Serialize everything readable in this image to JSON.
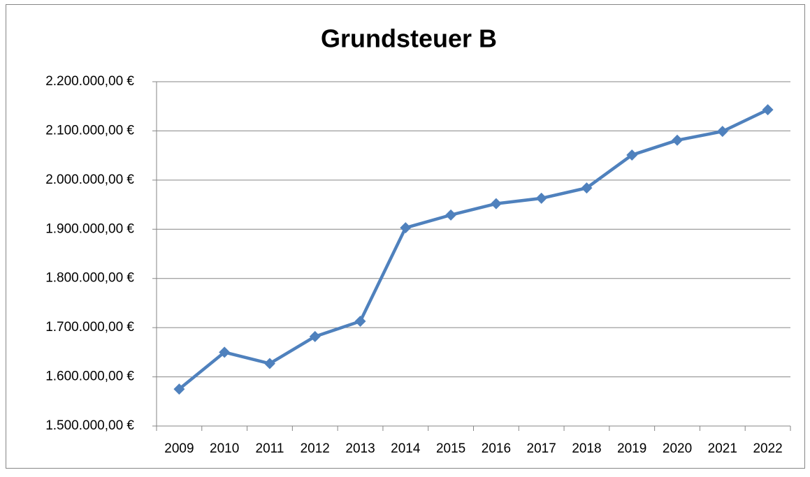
{
  "chart_data": {
    "type": "line",
    "title": "Grundsteuer B",
    "categories": [
      "2009",
      "2010",
      "2011",
      "2012",
      "2013",
      "2014",
      "2015",
      "2016",
      "2017",
      "2018",
      "2019",
      "2020",
      "2021",
      "2022"
    ],
    "series": [
      {
        "name": "Grundsteuer B",
        "color": "#4f81bd",
        "values": [
          1575000,
          1650000,
          1627000,
          1682000,
          1713000,
          1903000,
          1929000,
          1952000,
          1963000,
          1984000,
          2051000,
          2081000,
          2099000,
          2143000
        ]
      }
    ],
    "ylim": [
      1500000,
      2200000
    ],
    "yticks": [
      {
        "value": 1500000,
        "label": "1.500.000,00 €"
      },
      {
        "value": 1600000,
        "label": "1.600.000,00 €"
      },
      {
        "value": 1700000,
        "label": "1.700.000,00 €"
      },
      {
        "value": 1800000,
        "label": "1.800.000,00 €"
      },
      {
        "value": 1900000,
        "label": "1.900.000,00 €"
      },
      {
        "value": 2000000,
        "label": "2.000.000,00 €"
      },
      {
        "value": 2100000,
        "label": "2.100.000,00 €"
      },
      {
        "value": 2200000,
        "label": "2.200.000,00 €"
      }
    ],
    "grid": true
  }
}
